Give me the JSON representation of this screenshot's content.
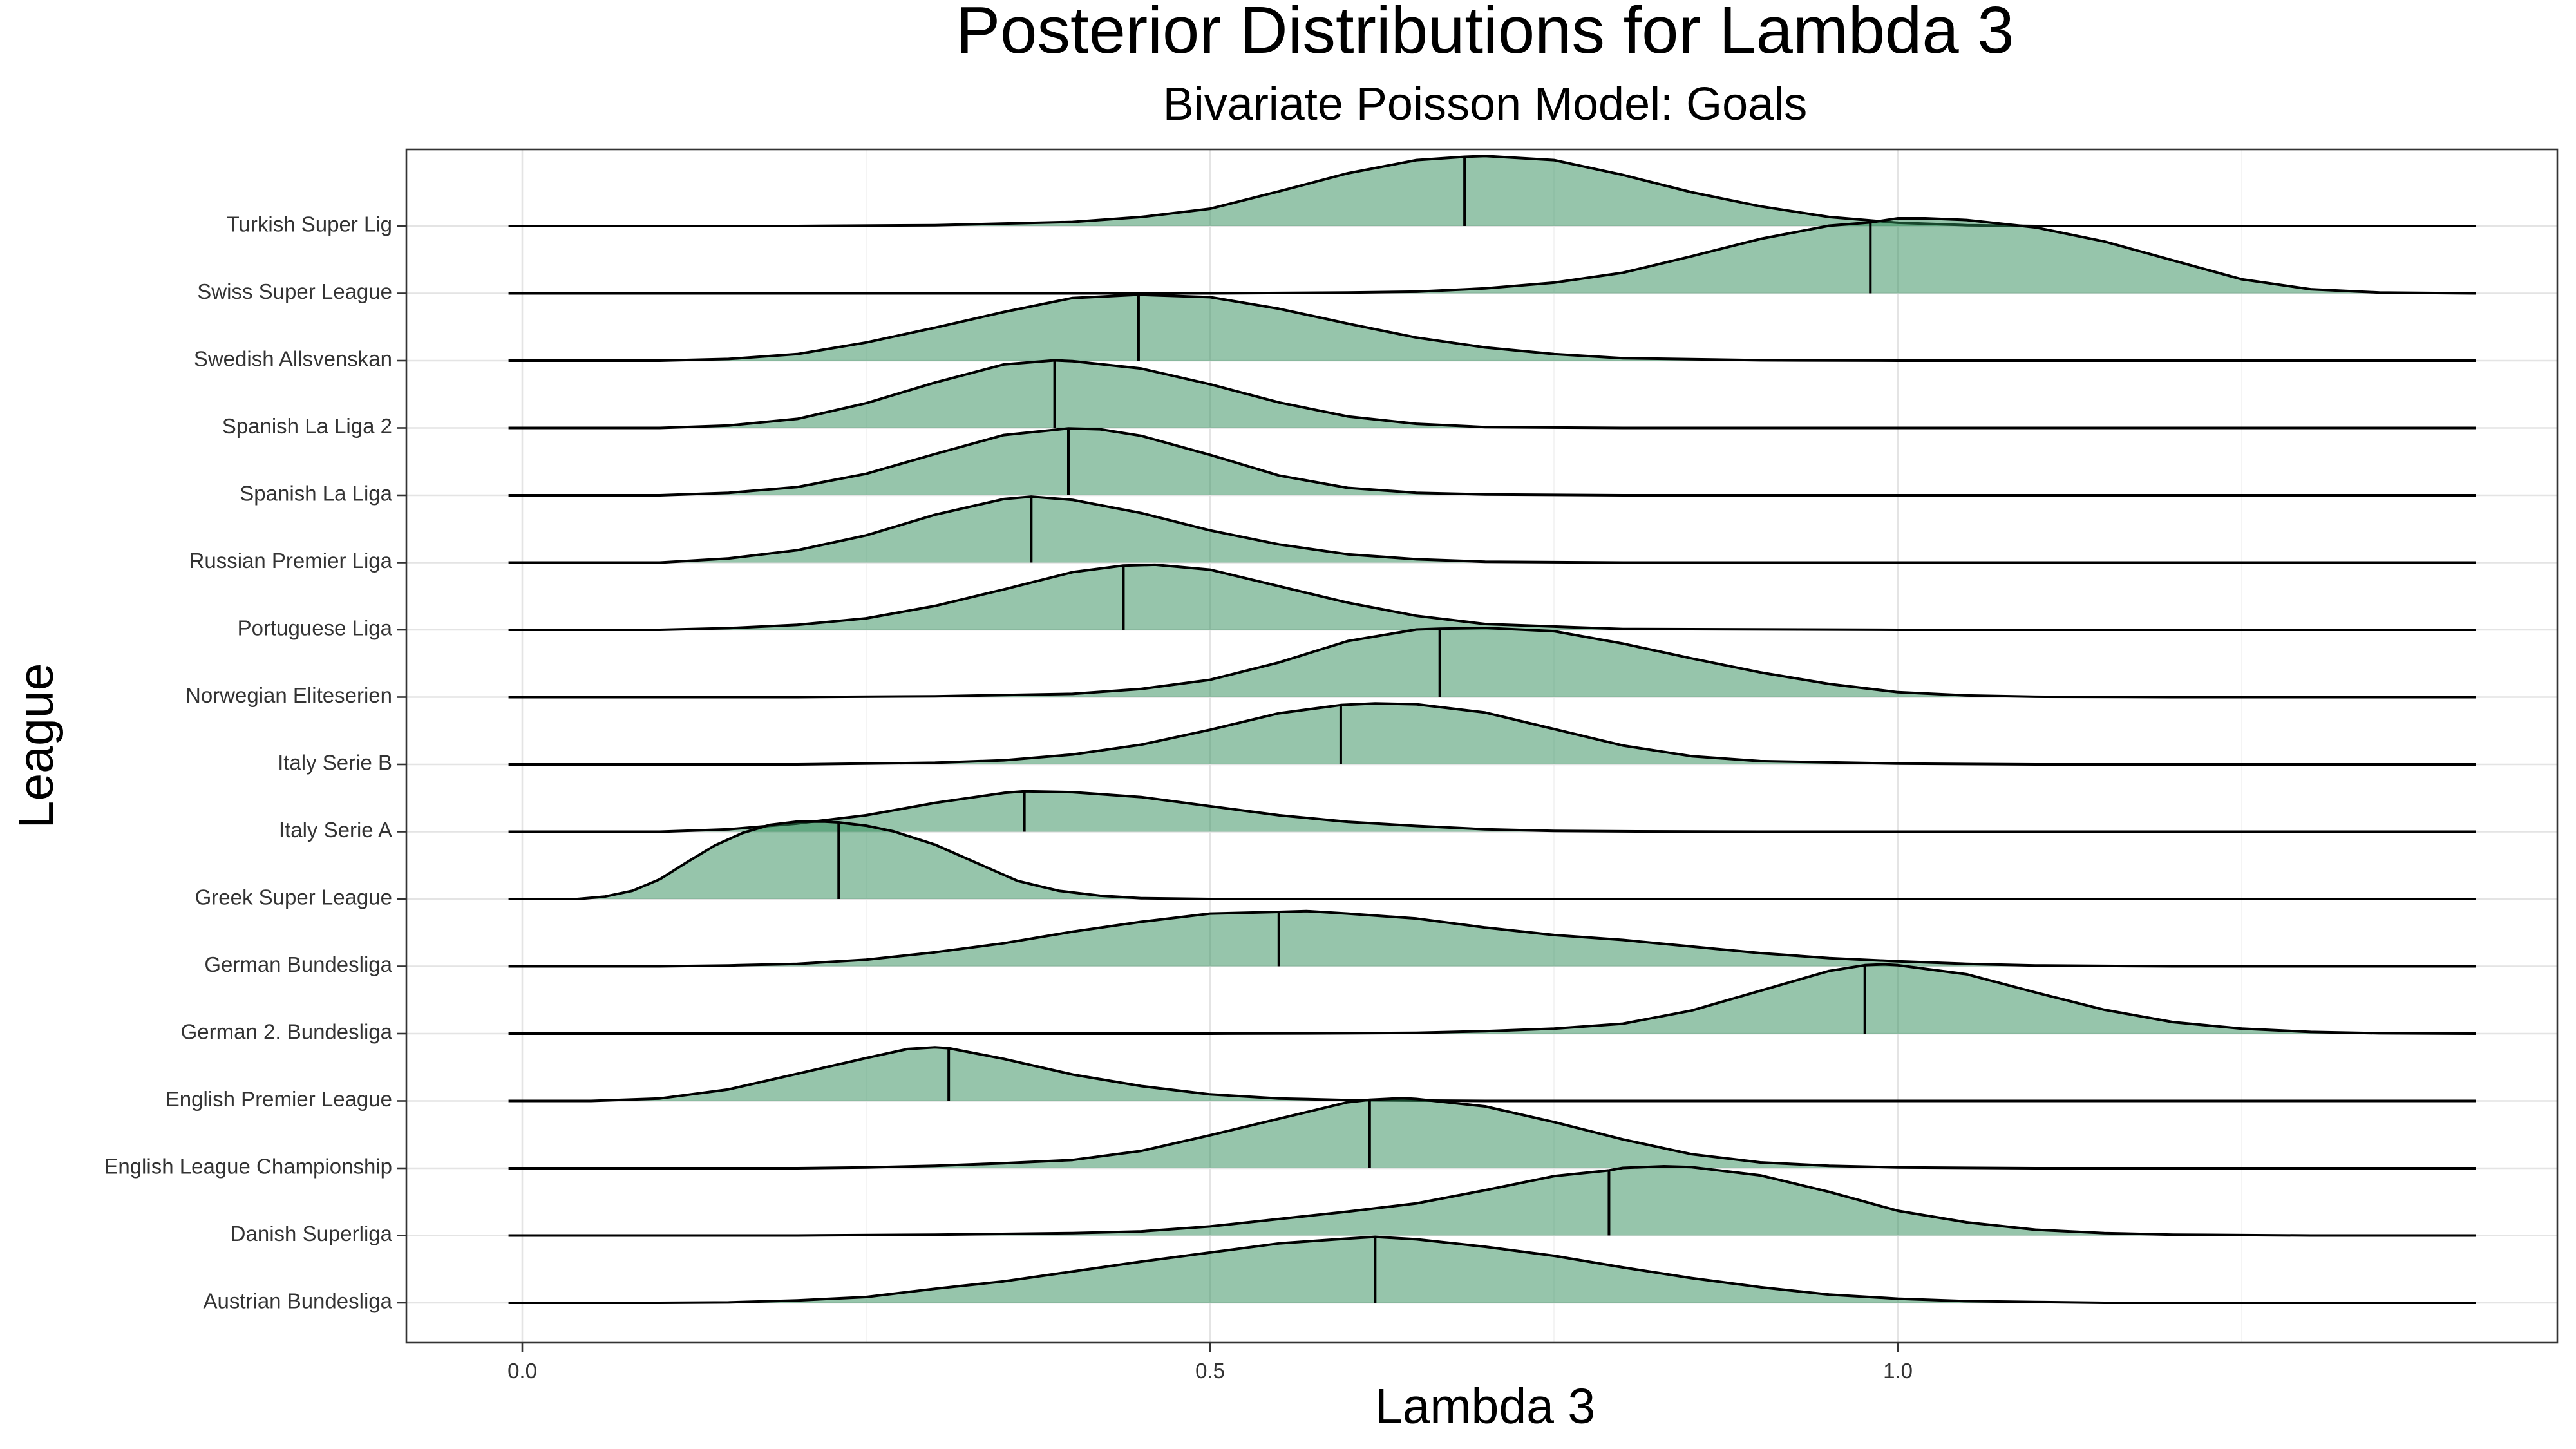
{
  "chart_data": {
    "type": "area",
    "subtype": "ridgeline",
    "title": "Posterior Distributions for Lambda 3",
    "subtitle": "Bivariate Poisson Model: Goals",
    "xlabel": "Lambda 3",
    "ylabel": "League",
    "xlim": [
      -0.08,
      1.45
    ],
    "x_ticks": [
      "0.0",
      "0.5",
      "1.0"
    ],
    "x_tick_values": [
      0.0,
      0.5,
      1.0
    ],
    "grid": true,
    "legend": "none",
    "fill_color": "#2E8B57",
    "fill_opacity": 0.5,
    "line_color": "#000000",
    "categories": [
      "Austrian Bundesliga",
      "Danish Superliga",
      "English League Championship",
      "English Premier League",
      "German 2. Bundesliga",
      "German Bundesliga",
      "Greek Super League",
      "Italy Serie A",
      "Italy Serie B",
      "Norwegian Eliteserien",
      "Portuguese Liga",
      "Russian Premier Liga",
      "Spanish La Liga",
      "Spanish La Liga 2",
      "Swedish Allsvenskan",
      "Swiss Super League",
      "Turkish Super Lig"
    ],
    "series": [
      {
        "category": "Austrian Bundesliga",
        "median": 0.62,
        "density_x": [
          -0.01,
          0.05,
          0.1,
          0.15,
          0.2,
          0.25,
          0.3,
          0.35,
          0.4,
          0.45,
          0.5,
          0.55,
          0.6,
          0.62,
          0.65,
          0.7,
          0.75,
          0.8,
          0.85,
          0.9,
          0.95,
          1.0,
          1.05,
          1.1,
          1.15,
          1.2,
          1.3,
          1.42
        ],
        "density_y": [
          0.0,
          0.0,
          0.0,
          0.005,
          0.03,
          0.07,
          0.17,
          0.26,
          0.38,
          0.5,
          0.61,
          0.72,
          0.78,
          0.8,
          0.77,
          0.68,
          0.57,
          0.43,
          0.3,
          0.19,
          0.1,
          0.05,
          0.02,
          0.01,
          0.0,
          0.0,
          0.0,
          0.0
        ]
      },
      {
        "category": "Danish Superliga",
        "median": 0.79,
        "density_x": [
          -0.01,
          0.1,
          0.2,
          0.3,
          0.4,
          0.45,
          0.5,
          0.55,
          0.6,
          0.65,
          0.7,
          0.75,
          0.79,
          0.8,
          0.83,
          0.85,
          0.9,
          0.95,
          1.0,
          1.05,
          1.1,
          1.15,
          1.2,
          1.3,
          1.42
        ],
        "density_y": [
          0.0,
          0.0,
          0.0,
          0.01,
          0.03,
          0.05,
          0.11,
          0.2,
          0.29,
          0.39,
          0.55,
          0.72,
          0.79,
          0.82,
          0.84,
          0.83,
          0.73,
          0.53,
          0.3,
          0.16,
          0.07,
          0.03,
          0.01,
          0.0,
          0.0
        ]
      },
      {
        "category": "English League Championship",
        "median": 0.616,
        "density_x": [
          -0.01,
          0.1,
          0.2,
          0.25,
          0.3,
          0.35,
          0.4,
          0.45,
          0.5,
          0.55,
          0.6,
          0.616,
          0.64,
          0.65,
          0.7,
          0.75,
          0.8,
          0.85,
          0.9,
          0.95,
          1.0,
          1.1,
          1.42
        ],
        "density_y": [
          0.0,
          0.0,
          0.0,
          0.01,
          0.03,
          0.06,
          0.1,
          0.21,
          0.4,
          0.6,
          0.8,
          0.83,
          0.85,
          0.84,
          0.75,
          0.56,
          0.35,
          0.17,
          0.07,
          0.03,
          0.01,
          0.0,
          0.0
        ]
      },
      {
        "category": "English Premier League",
        "median": 0.31,
        "density_x": [
          -0.01,
          0.05,
          0.1,
          0.15,
          0.2,
          0.25,
          0.28,
          0.3,
          0.31,
          0.35,
          0.4,
          0.45,
          0.5,
          0.55,
          0.6,
          0.7,
          0.8,
          1.0,
          1.42
        ],
        "density_y": [
          0.0,
          0.0,
          0.03,
          0.14,
          0.33,
          0.52,
          0.63,
          0.65,
          0.64,
          0.51,
          0.32,
          0.18,
          0.08,
          0.03,
          0.01,
          0.0,
          0.0,
          0.0,
          0.0
        ]
      },
      {
        "category": "German 2. Bundesliga",
        "median": 0.976,
        "density_x": [
          -0.01,
          0.2,
          0.4,
          0.5,
          0.6,
          0.65,
          0.7,
          0.75,
          0.8,
          0.85,
          0.9,
          0.95,
          0.976,
          0.99,
          1.0,
          1.05,
          1.1,
          1.15,
          1.2,
          1.25,
          1.3,
          1.35,
          1.42
        ],
        "density_y": [
          0.0,
          0.0,
          0.0,
          0.0,
          0.005,
          0.01,
          0.03,
          0.06,
          0.12,
          0.28,
          0.52,
          0.76,
          0.83,
          0.84,
          0.83,
          0.72,
          0.5,
          0.29,
          0.14,
          0.06,
          0.02,
          0.005,
          0.0
        ]
      },
      {
        "category": "German Bundesliga",
        "median": 0.55,
        "density_x": [
          -0.01,
          0.1,
          0.15,
          0.2,
          0.25,
          0.3,
          0.35,
          0.4,
          0.45,
          0.5,
          0.55,
          0.57,
          0.6,
          0.65,
          0.7,
          0.75,
          0.8,
          0.85,
          0.9,
          0.95,
          1.0,
          1.05,
          1.1,
          1.15,
          1.2,
          1.3,
          1.42
        ],
        "density_y": [
          0.0,
          0.0,
          0.01,
          0.03,
          0.08,
          0.17,
          0.28,
          0.42,
          0.54,
          0.64,
          0.66,
          0.67,
          0.64,
          0.58,
          0.47,
          0.38,
          0.32,
          0.24,
          0.16,
          0.1,
          0.06,
          0.03,
          0.01,
          0.005,
          0.0,
          0.0,
          0.0
        ]
      },
      {
        "category": "Greek Super League",
        "median": 0.23,
        "density_x": [
          -0.01,
          0.04,
          0.06,
          0.08,
          0.1,
          0.12,
          0.14,
          0.16,
          0.18,
          0.2,
          0.22,
          0.23,
          0.25,
          0.27,
          0.3,
          0.33,
          0.36,
          0.39,
          0.42,
          0.45,
          0.5,
          0.6,
          1.42
        ],
        "density_y": [
          0.0,
          0.0,
          0.03,
          0.1,
          0.24,
          0.45,
          0.65,
          0.8,
          0.9,
          0.94,
          0.94,
          0.93,
          0.89,
          0.82,
          0.66,
          0.44,
          0.22,
          0.1,
          0.04,
          0.01,
          0.0,
          0.0,
          0.0
        ]
      },
      {
        "category": "Italy Serie A",
        "median": 0.365,
        "density_x": [
          -0.01,
          0.1,
          0.15,
          0.2,
          0.25,
          0.3,
          0.35,
          0.365,
          0.4,
          0.45,
          0.5,
          0.55,
          0.6,
          0.65,
          0.7,
          0.75,
          0.8,
          0.9,
          1.0,
          1.42
        ],
        "density_y": [
          0.0,
          0.0,
          0.03,
          0.1,
          0.2,
          0.35,
          0.47,
          0.49,
          0.48,
          0.42,
          0.31,
          0.2,
          0.12,
          0.07,
          0.03,
          0.01,
          0.005,
          0.0,
          0.0,
          0.0
        ]
      },
      {
        "category": "Italy Serie B",
        "median": 0.595,
        "density_x": [
          -0.01,
          0.2,
          0.3,
          0.35,
          0.4,
          0.45,
          0.5,
          0.55,
          0.595,
          0.62,
          0.65,
          0.7,
          0.75,
          0.8,
          0.85,
          0.9,
          1.0,
          1.1,
          1.42
        ],
        "density_y": [
          0.0,
          0.0,
          0.02,
          0.05,
          0.12,
          0.24,
          0.42,
          0.62,
          0.72,
          0.74,
          0.73,
          0.63,
          0.43,
          0.23,
          0.1,
          0.04,
          0.01,
          0.0,
          0.0
        ]
      },
      {
        "category": "Norwegian Eliteserien",
        "median": 0.667,
        "density_x": [
          -0.01,
          0.2,
          0.3,
          0.4,
          0.45,
          0.5,
          0.55,
          0.6,
          0.65,
          0.667,
          0.7,
          0.75,
          0.8,
          0.85,
          0.9,
          0.95,
          1.0,
          1.05,
          1.1,
          1.2,
          1.42
        ],
        "density_y": [
          0.0,
          0.0,
          0.01,
          0.04,
          0.1,
          0.21,
          0.42,
          0.68,
          0.82,
          0.83,
          0.84,
          0.8,
          0.65,
          0.47,
          0.3,
          0.16,
          0.06,
          0.02,
          0.005,
          0.0,
          0.0
        ]
      },
      {
        "category": "Portuguese Liga",
        "median": 0.437,
        "density_x": [
          -0.01,
          0.1,
          0.15,
          0.2,
          0.25,
          0.3,
          0.35,
          0.4,
          0.437,
          0.46,
          0.5,
          0.55,
          0.6,
          0.65,
          0.7,
          0.8,
          1.0,
          1.42
        ],
        "density_y": [
          0.0,
          0.0,
          0.02,
          0.06,
          0.14,
          0.29,
          0.49,
          0.7,
          0.78,
          0.79,
          0.73,
          0.53,
          0.33,
          0.17,
          0.07,
          0.01,
          0.0,
          0.0
        ]
      },
      {
        "category": "Russian Premier Liga",
        "median": 0.37,
        "density_x": [
          -0.01,
          0.1,
          0.15,
          0.2,
          0.25,
          0.3,
          0.35,
          0.37,
          0.4,
          0.45,
          0.5,
          0.55,
          0.6,
          0.65,
          0.7,
          0.8,
          1.0,
          1.42
        ],
        "density_y": [
          0.0,
          0.0,
          0.05,
          0.15,
          0.33,
          0.58,
          0.77,
          0.8,
          0.76,
          0.6,
          0.39,
          0.22,
          0.1,
          0.04,
          0.01,
          0.0,
          0.0,
          0.0
        ]
      },
      {
        "category": "Spanish La Liga",
        "median": 0.397,
        "density_x": [
          -0.01,
          0.1,
          0.15,
          0.2,
          0.25,
          0.3,
          0.35,
          0.397,
          0.42,
          0.45,
          0.5,
          0.55,
          0.6,
          0.65,
          0.7,
          0.8,
          1.0,
          1.42
        ],
        "density_y": [
          0.0,
          0.0,
          0.03,
          0.1,
          0.26,
          0.5,
          0.73,
          0.81,
          0.8,
          0.72,
          0.49,
          0.24,
          0.09,
          0.03,
          0.01,
          0.0,
          0.0,
          0.0
        ]
      },
      {
        "category": "Spanish La Liga 2",
        "median": 0.387,
        "density_x": [
          -0.01,
          0.1,
          0.15,
          0.2,
          0.25,
          0.3,
          0.35,
          0.387,
          0.4,
          0.45,
          0.5,
          0.55,
          0.6,
          0.65,
          0.7,
          0.8,
          1.0,
          1.42
        ],
        "density_y": [
          0.0,
          0.0,
          0.03,
          0.11,
          0.3,
          0.55,
          0.77,
          0.82,
          0.81,
          0.72,
          0.53,
          0.31,
          0.14,
          0.05,
          0.01,
          0.0,
          0.0,
          0.0
        ]
      },
      {
        "category": "Swedish Allsvenskan",
        "median": 0.448,
        "density_x": [
          -0.01,
          0.1,
          0.15,
          0.2,
          0.25,
          0.3,
          0.35,
          0.4,
          0.448,
          0.5,
          0.55,
          0.6,
          0.65,
          0.7,
          0.75,
          0.8,
          0.9,
          1.0,
          1.42
        ],
        "density_y": [
          0.0,
          0.0,
          0.02,
          0.08,
          0.22,
          0.4,
          0.59,
          0.76,
          0.8,
          0.77,
          0.63,
          0.45,
          0.28,
          0.16,
          0.08,
          0.03,
          0.005,
          0.0,
          0.0
        ]
      },
      {
        "category": "Swiss Super League",
        "median": 0.98,
        "density_x": [
          -0.01,
          0.4,
          0.5,
          0.6,
          0.65,
          0.7,
          0.75,
          0.8,
          0.85,
          0.9,
          0.95,
          0.98,
          1.0,
          1.02,
          1.05,
          1.1,
          1.15,
          1.2,
          1.25,
          1.3,
          1.35,
          1.42
        ],
        "density_y": [
          0.0,
          0.0,
          0.0,
          0.01,
          0.02,
          0.06,
          0.13,
          0.25,
          0.45,
          0.66,
          0.82,
          0.86,
          0.91,
          0.91,
          0.89,
          0.8,
          0.63,
          0.4,
          0.17,
          0.05,
          0.01,
          0.0
        ]
      },
      {
        "category": "Turkish Super Lig",
        "median": 0.685,
        "density_x": [
          -0.01,
          0.2,
          0.3,
          0.4,
          0.45,
          0.5,
          0.55,
          0.6,
          0.65,
          0.685,
          0.7,
          0.75,
          0.8,
          0.85,
          0.9,
          0.95,
          1.0,
          1.05,
          1.1,
          1.2,
          1.42
        ],
        "density_y": [
          0.0,
          0.0,
          0.01,
          0.05,
          0.11,
          0.21,
          0.42,
          0.64,
          0.8,
          0.84,
          0.85,
          0.8,
          0.62,
          0.41,
          0.24,
          0.11,
          0.04,
          0.01,
          0.0,
          0.0,
          0.0
        ]
      }
    ]
  }
}
